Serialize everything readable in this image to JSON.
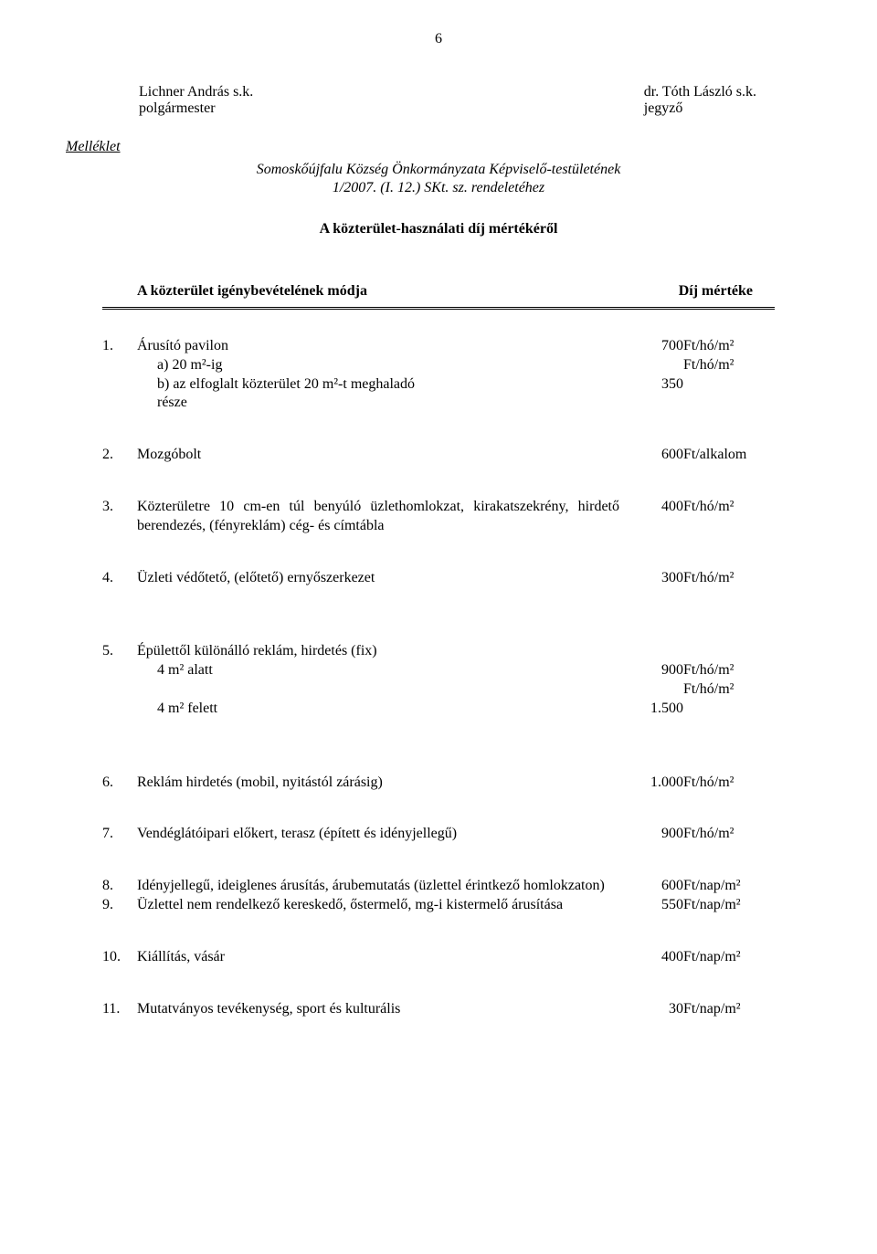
{
  "page_number": "6",
  "signatures": {
    "left_name": "Lichner András s.k.",
    "left_title": "polgármester",
    "right_name": "dr. Tóth László s.k.",
    "right_title": "jegyző"
  },
  "attachment": {
    "label": "Melléklet",
    "line1": "Somoskőújfalu Község Önkormányzata Képviselő-testületének",
    "line2": "1/2007. (I. 12.) SKt. sz. rendeletéhez"
  },
  "title": "A közterület-használati díj mértékéről",
  "table_header": {
    "left": "A közterület igénybevételének módja",
    "right": "Díj mértéke"
  },
  "rows": {
    "r1": {
      "num": "1.",
      "desc": "Árusító pavilon",
      "a_label": "a)",
      "a_desc": "20 m²-ig",
      "b_label": "b)",
      "b_desc_line1": "az elfoglalt közterület 20 m²-t meghaladó",
      "b_desc_line2": "része",
      "val1": "700",
      "unit1": "Ft/hó/m²",
      "unit2": "Ft/hó/m²",
      "val2": "350"
    },
    "r2": {
      "num": "2.",
      "desc": "Mozgóbolt",
      "val": "600",
      "unit": "Ft/alkalom"
    },
    "r3": {
      "num": "3.",
      "desc": "Közterületre 10 cm-en túl benyúló üzlethomlokzat, kirakatszekrény, hirdető berendezés, (fényreklám) cég- és címtábla",
      "val": "400",
      "unit": "Ft/hó/m²"
    },
    "r4": {
      "num": "4.",
      "desc": "Üzleti védőtető, (előtető) ernyőszerkezet",
      "val": "300",
      "unit": "Ft/hó/m²"
    },
    "r5": {
      "num": "5.",
      "desc": "Épülettől különálló reklám, hirdetés (fix)",
      "a_desc": "4 m² alatt",
      "b_desc": "4 m² felett",
      "val1": "900",
      "unit1": "Ft/hó/m²",
      "unit2": "Ft/hó/m²",
      "val2": "1.500"
    },
    "r6": {
      "num": "6.",
      "desc": "Reklám hirdetés (mobil, nyitástól zárásig)",
      "val": "1.000",
      "unit": "Ft/hó/m²"
    },
    "r7": {
      "num": "7.",
      "desc": "Vendéglátóipari előkert, terasz (épített és idényjellegű)",
      "val": "900",
      "unit": "Ft/hó/m²"
    },
    "r8": {
      "num": "8.",
      "desc": "Idényjellegű, ideiglenes árusítás, árubemutatás (üzlettel érintkező homlokzaton)",
      "val": "600",
      "unit": "Ft/nap/m²"
    },
    "r9": {
      "num": "9.",
      "desc": "Üzlettel nem rendelkező kereskedő, őstermelő, mg-i kistermelő árusítása",
      "val": "550",
      "unit": "Ft/nap/m²"
    },
    "r10": {
      "num": "10.",
      "desc": "Kiállítás, vásár",
      "val": "400",
      "unit": "Ft/nap/m²"
    },
    "r11": {
      "num": "11.",
      "desc": "Mutatványos tevékenység, sport és kulturális",
      "val": "30",
      "unit": "Ft/nap/m²"
    }
  }
}
